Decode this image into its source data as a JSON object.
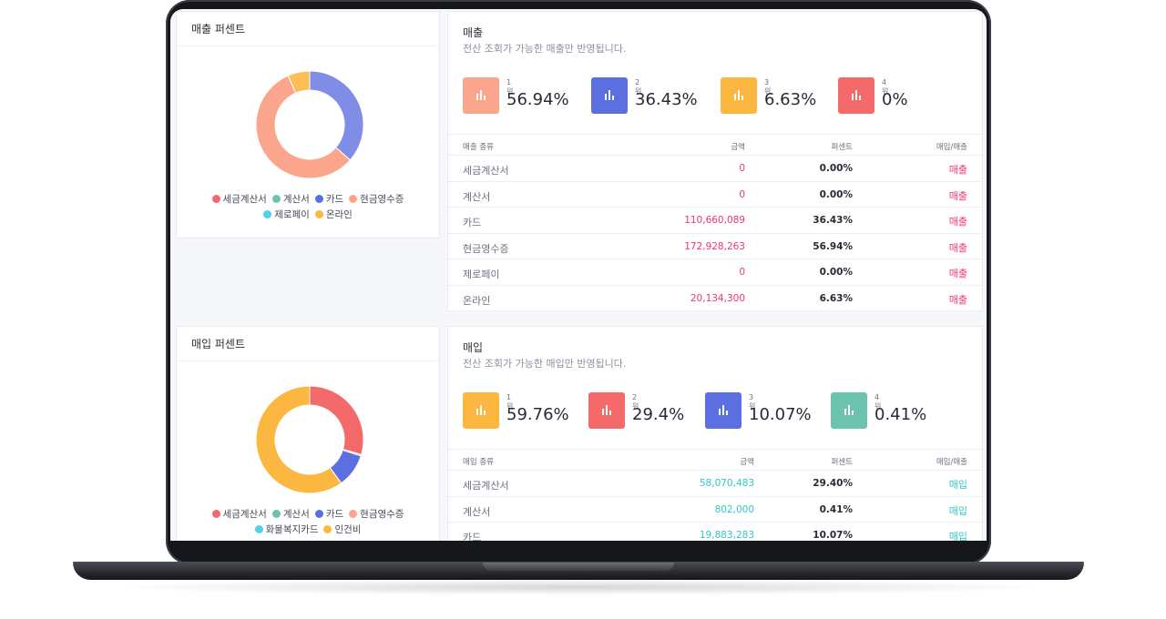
{
  "sales_percent": {
    "title": "매출 퍼센트",
    "legend": [
      {
        "label": "세금계산서",
        "color": "#f46a6a"
      },
      {
        "label": "계산서",
        "color": "#6cc3b0"
      },
      {
        "label": "카드",
        "color": "#5b6fe0"
      },
      {
        "label": "현금영수증",
        "color": "#fba58c"
      },
      {
        "label": "제로페이",
        "color": "#4fd1e8"
      },
      {
        "label": "온라인",
        "color": "#fbb73f"
      }
    ],
    "chart_data": {
      "type": "pie",
      "categories": [
        "세금계산서",
        "계산서",
        "카드",
        "현금영수증",
        "제로페이",
        "온라인"
      ],
      "values": [
        0,
        0,
        36.43,
        56.94,
        0,
        6.63
      ],
      "colors": [
        "#f46a6a",
        "#6cc3b0",
        "#7f8de6",
        "#fba58c",
        "#4fd1e8",
        "#fbbf54"
      ]
    }
  },
  "sales": {
    "title": "매출",
    "subtitle": "전산 조회가 가능한 매출만 반영됩니다.",
    "ranks": [
      {
        "label": "1위",
        "value": "56.94%",
        "color": "#fba58c"
      },
      {
        "label": "2위",
        "value": "36.43%",
        "color": "#5b6fe0"
      },
      {
        "label": "3위",
        "value": "6.63%",
        "color": "#fbb73f"
      },
      {
        "label": "4위",
        "value": "0%",
        "color": "#f46a6a"
      }
    ],
    "headers": {
      "type": "매출 종류",
      "amount": "금액",
      "percent": "퍼센트",
      "kind": "매입/매출"
    },
    "rows": [
      {
        "type": "세금계산서",
        "amount": "0",
        "percent": "0.00%",
        "kind": "매출"
      },
      {
        "type": "계산서",
        "amount": "0",
        "percent": "0.00%",
        "kind": "매출"
      },
      {
        "type": "카드",
        "amount": "110,660,089",
        "percent": "36.43%",
        "kind": "매출"
      },
      {
        "type": "현금영수증",
        "amount": "172,928,263",
        "percent": "56.94%",
        "kind": "매출"
      },
      {
        "type": "제로페이",
        "amount": "0",
        "percent": "0.00%",
        "kind": "매출"
      },
      {
        "type": "온라인",
        "amount": "20,134,300",
        "percent": "6.63%",
        "kind": "매출"
      }
    ]
  },
  "purchase_percent": {
    "title": "매입 퍼센트",
    "legend": [
      {
        "label": "세금계산서",
        "color": "#f46a6a"
      },
      {
        "label": "계산서",
        "color": "#6cc3b0"
      },
      {
        "label": "카드",
        "color": "#5b6fe0"
      },
      {
        "label": "현금영수증",
        "color": "#fba58c"
      },
      {
        "label": "화물복지카드",
        "color": "#4fd1e8"
      },
      {
        "label": "인건비",
        "color": "#fbb73f"
      }
    ],
    "chart_data": {
      "type": "pie",
      "categories": [
        "세금계산서",
        "계산서",
        "카드",
        "현금영수증",
        "화물복지카드",
        "인건비"
      ],
      "values": [
        29.4,
        0.41,
        10.07,
        0,
        0,
        59.76
      ],
      "colors": [
        "#f46a6a",
        "#6cc3b0",
        "#5b6fe0",
        "#fba58c",
        "#4fd1e8",
        "#fbb73f"
      ]
    }
  },
  "purchase": {
    "title": "매입",
    "subtitle": "전산 조회가 가능한 매입만 반영됩니다.",
    "ranks": [
      {
        "label": "1위",
        "value": "59.76%",
        "color": "#fbb73f"
      },
      {
        "label": "2위",
        "value": "29.4%",
        "color": "#f46a6a"
      },
      {
        "label": "3위",
        "value": "10.07%",
        "color": "#5b6fe0"
      },
      {
        "label": "4위",
        "value": "0.41%",
        "color": "#6cc3b0"
      }
    ],
    "headers": {
      "type": "매입 종류",
      "amount": "금액",
      "percent": "퍼센트",
      "kind": "매입/매출"
    },
    "rows": [
      {
        "type": "세금계산서",
        "amount": "58,070,483",
        "percent": "29.40%",
        "kind": "매입"
      },
      {
        "type": "계산서",
        "amount": "802,000",
        "percent": "0.41%",
        "kind": "매입"
      },
      {
        "type": "카드",
        "amount": "19,883,283",
        "percent": "10.07%",
        "kind": "매입"
      }
    ]
  }
}
